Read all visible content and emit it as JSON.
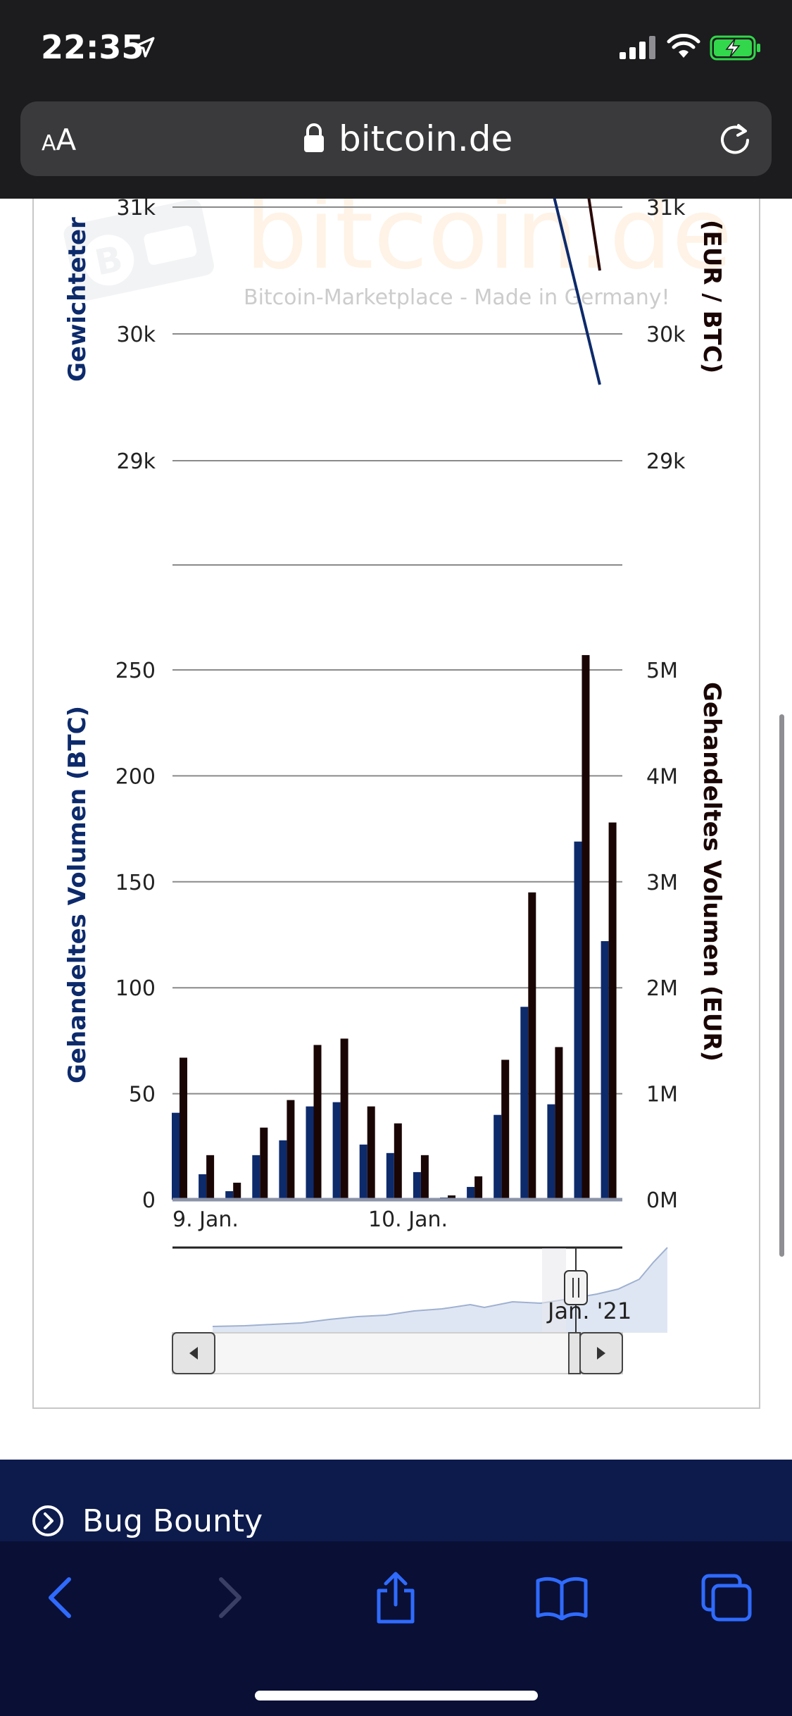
{
  "status_bar": {
    "time": "22:35",
    "icons": [
      "location-arrow-icon",
      "cellular-signal-icon",
      "wifi-icon",
      "battery-charging-icon"
    ],
    "battery_color": "#32d74b"
  },
  "browser": {
    "aa_small": "A",
    "aa_large": "A",
    "url": "bitcoin.de",
    "icons": [
      "lock-icon",
      "reload-icon"
    ]
  },
  "watermark": {
    "logo_text": "bitcoin.de",
    "tagline": "Bitcoin-Marketplace - Made in Germany!"
  },
  "chart_data": [
    {
      "type": "line",
      "title": "",
      "ylabel_left": "Gewichteter",
      "ylabel_right": "(EUR / BTC)",
      "y_ticks_left": [
        "31k",
        "30k",
        "29k"
      ],
      "y_ticks_right": [
        "31k",
        "30k",
        "29k"
      ],
      "ylim": [
        28500,
        31100
      ],
      "series": [
        {
          "name": "Gewichteter Preis (BTC)",
          "color": "#0d2a6b",
          "x": [
            0.84,
            0.95
          ],
          "values": [
            31200,
            29600
          ]
        },
        {
          "name": "Preis (EUR / BTC)",
          "color": "#2b0a0a",
          "x": [
            0.92,
            0.95
          ],
          "values": [
            31200,
            30500
          ]
        }
      ]
    },
    {
      "type": "bar",
      "ylabel_left": "Gehandeltes Volumen (BTC)",
      "ylabel_right": "Gehandeltes Volumen (EUR)",
      "y_ticks_left": [
        "0",
        "50",
        "100",
        "150",
        "200",
        "250"
      ],
      "y_ticks_right": [
        "0M",
        "1M",
        "2M",
        "3M",
        "4M",
        "5M"
      ],
      "ylim_left": [
        0,
        250
      ],
      "ylim_right": [
        0,
        5
      ],
      "x_labels": [
        "9. Jan.",
        "10. Jan."
      ],
      "series": [
        {
          "name": "Gehandeltes Volumen (BTC)",
          "color": "#0d2a6b",
          "values": [
            41,
            12,
            4,
            21,
            28,
            44,
            46,
            26,
            22,
            13,
            1,
            6,
            40,
            91,
            45,
            169,
            122
          ]
        },
        {
          "name": "Gehandeltes Volumen (EUR)",
          "color": "#1a0505",
          "values": [
            1.34,
            0.42,
            0.16,
            0.68,
            0.94,
            1.46,
            1.52,
            0.88,
            0.72,
            0.42,
            0.04,
            0.22,
            1.32,
            2.9,
            1.44,
            5.14,
            3.56
          ]
        }
      ],
      "navigator_label": "Jan. '21"
    }
  ],
  "footer": {
    "bug_bounty_label": "Bug Bounty"
  },
  "toolbar": {
    "icons": [
      "back-icon",
      "forward-icon",
      "share-icon",
      "bookmarks-icon",
      "tabs-icon"
    ]
  }
}
